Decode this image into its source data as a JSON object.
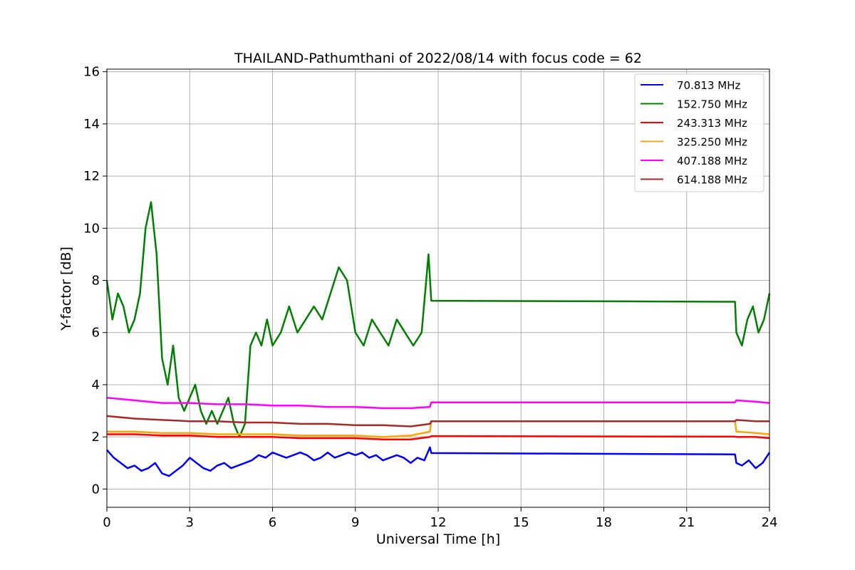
{
  "chart_data": {
    "type": "line",
    "title": "THAILAND-Pathumthani of 2022/08/14 with focus code = 62",
    "xlabel": "Universal Time [h]",
    "ylabel": "Y-factor [dB]",
    "xlim": [
      0,
      24
    ],
    "ylim": [
      -0.7,
      16.1
    ],
    "xticks": [
      0,
      3,
      6,
      9,
      12,
      15,
      18,
      21,
      24
    ],
    "yticks": [
      0,
      2,
      4,
      6,
      8,
      10,
      12,
      14,
      16
    ],
    "grid": true,
    "legend_position": "top-right",
    "series": [
      {
        "name": " 70.813 MHz",
        "color": "#0000ff",
        "x": [
          0,
          0.25,
          0.5,
          0.75,
          1.0,
          1.25,
          1.5,
          1.75,
          2.0,
          2.25,
          2.5,
          2.75,
          3.0,
          3.25,
          3.5,
          3.75,
          4.0,
          4.25,
          4.5,
          4.75,
          5.0,
          5.25,
          5.5,
          5.75,
          6.0,
          6.25,
          6.5,
          6.75,
          7.0,
          7.25,
          7.5,
          7.75,
          8.0,
          8.25,
          8.5,
          8.75,
          9.0,
          9.25,
          9.5,
          9.75,
          10.0,
          10.25,
          10.5,
          10.75,
          11.0,
          11.25,
          11.5,
          11.7,
          11.75,
          22.75,
          22.8,
          23.0,
          23.25,
          23.5,
          23.75,
          24.0
        ],
        "y": [
          1.5,
          1.2,
          1.0,
          0.8,
          0.9,
          0.7,
          0.8,
          1.0,
          0.6,
          0.5,
          0.7,
          0.9,
          1.2,
          1.0,
          0.8,
          0.7,
          0.9,
          1.0,
          0.8,
          0.9,
          1.0,
          1.1,
          1.3,
          1.2,
          1.4,
          1.3,
          1.2,
          1.3,
          1.4,
          1.3,
          1.1,
          1.2,
          1.4,
          1.2,
          1.3,
          1.4,
          1.3,
          1.4,
          1.2,
          1.3,
          1.1,
          1.2,
          1.3,
          1.2,
          1.0,
          1.2,
          1.1,
          1.6,
          1.38,
          1.33,
          1.0,
          0.9,
          1.1,
          0.8,
          1.0,
          1.4
        ]
      },
      {
        "name": "152.750 MHz",
        "color": "#008000",
        "x": [
          0,
          0.2,
          0.4,
          0.6,
          0.8,
          1.0,
          1.2,
          1.4,
          1.6,
          1.8,
          2.0,
          2.2,
          2.4,
          2.6,
          2.8,
          3.0,
          3.2,
          3.4,
          3.6,
          3.8,
          4.0,
          4.2,
          4.4,
          4.6,
          4.8,
          5.0,
          5.2,
          5.4,
          5.6,
          5.8,
          6.0,
          6.3,
          6.6,
          6.9,
          7.2,
          7.5,
          7.8,
          8.1,
          8.4,
          8.7,
          9.0,
          9.3,
          9.6,
          9.9,
          10.2,
          10.5,
          10.8,
          11.1,
          11.4,
          11.65,
          11.75,
          22.75,
          22.8,
          23.0,
          23.2,
          23.4,
          23.6,
          23.8,
          24.0
        ],
        "y": [
          8.0,
          6.5,
          7.5,
          7.0,
          6.0,
          6.5,
          7.5,
          10.0,
          11.0,
          9.0,
          5.0,
          4.0,
          5.5,
          3.5,
          3.0,
          3.5,
          4.0,
          3.0,
          2.5,
          3.0,
          2.5,
          3.0,
          3.5,
          2.5,
          2.0,
          2.5,
          5.5,
          6.0,
          5.5,
          6.5,
          5.5,
          6.0,
          7.0,
          6.0,
          6.5,
          7.0,
          6.5,
          7.5,
          8.5,
          8.0,
          6.0,
          5.5,
          6.5,
          6.0,
          5.5,
          6.5,
          6.0,
          5.5,
          6.0,
          9.0,
          7.22,
          7.18,
          6.0,
          5.5,
          6.5,
          7.0,
          6.0,
          6.5,
          7.5
        ]
      },
      {
        "name": "243.313 MHz",
        "color": "#ff0000",
        "x": [
          0,
          1.0,
          2.0,
          3.0,
          4.0,
          5.0,
          6.0,
          7.0,
          8.0,
          9.0,
          10.0,
          11.0,
          11.7,
          11.75,
          22.75,
          22.8,
          23.5,
          24.0
        ],
        "y": [
          2.1,
          2.1,
          2.05,
          2.05,
          2.0,
          2.0,
          2.0,
          1.95,
          1.95,
          1.95,
          1.9,
          1.9,
          2.0,
          2.03,
          2.01,
          2.0,
          2.0,
          1.95
        ]
      },
      {
        "name": "325.250 MHz",
        "color": "#ffa500",
        "x": [
          0,
          1.0,
          2.0,
          3.0,
          4.0,
          5.0,
          6.0,
          7.0,
          8.0,
          9.0,
          10.0,
          11.0,
          11.7,
          11.75,
          22.75,
          22.8,
          23.5,
          24.0
        ],
        "y": [
          2.2,
          2.2,
          2.15,
          2.15,
          2.1,
          2.1,
          2.1,
          2.05,
          2.05,
          2.05,
          2.0,
          2.05,
          2.2,
          2.6,
          2.6,
          2.2,
          2.15,
          2.1
        ]
      },
      {
        "name": "407.188 MHz",
        "color": "#ff00ff",
        "x": [
          0,
          1.0,
          2.0,
          3.0,
          4.0,
          5.0,
          6.0,
          7.0,
          8.0,
          9.0,
          10.0,
          11.0,
          11.7,
          11.75,
          22.75,
          22.8,
          23.5,
          24.0
        ],
        "y": [
          3.5,
          3.4,
          3.3,
          3.3,
          3.25,
          3.25,
          3.2,
          3.2,
          3.15,
          3.15,
          3.1,
          3.1,
          3.15,
          3.32,
          3.32,
          3.4,
          3.35,
          3.3
        ]
      },
      {
        "name": "614.188 MHz",
        "color": "#a52a2a",
        "x": [
          0,
          1.0,
          2.0,
          3.0,
          4.0,
          5.0,
          6.0,
          7.0,
          8.0,
          9.0,
          10.0,
          11.0,
          11.7,
          11.75,
          22.75,
          22.8,
          23.5,
          24.0
        ],
        "y": [
          2.8,
          2.7,
          2.65,
          2.6,
          2.6,
          2.55,
          2.55,
          2.5,
          2.5,
          2.45,
          2.45,
          2.4,
          2.5,
          2.6,
          2.6,
          2.65,
          2.6,
          2.6
        ]
      }
    ]
  }
}
